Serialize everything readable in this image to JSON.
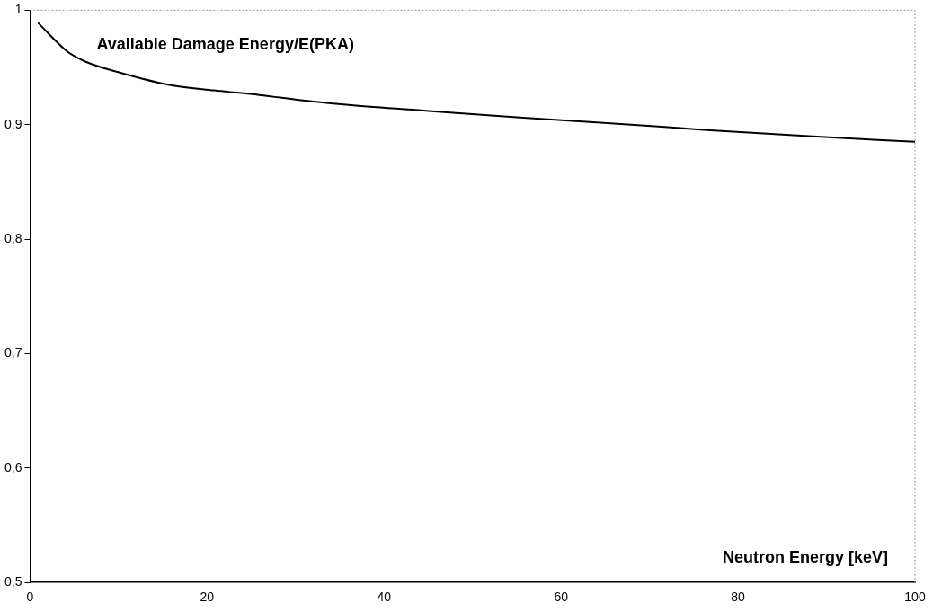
{
  "chart_data": {
    "type": "line",
    "xlabel": "Neutron Energy [keV]",
    "ylabel": "Available Damage Energy/E(PKA)",
    "x": [
      0.9,
      4.2,
      6.3,
      10.4,
      15.6,
      20.8,
      25.9,
      31.1,
      36.3,
      45,
      55.7,
      66,
      77.3,
      88,
      100
    ],
    "series": [
      {
        "color": "#000000",
        "values": [
          0.989,
          0.964,
          0.955,
          0.945,
          0.935,
          0.93,
          0.926,
          0.921,
          0.917,
          0.912,
          0.906,
          0.901,
          0.895,
          0.89,
          0.885
        ]
      }
    ],
    "xlim": [
      0,
      100
    ],
    "xticks": [
      0,
      20,
      40,
      60,
      80,
      100
    ],
    "ylim": [
      0.5,
      1
    ],
    "yticks": [
      {
        "value": 0.5,
        "label": "0,5"
      },
      {
        "value": 0.6,
        "label": "0,6"
      },
      {
        "value": 0.7,
        "label": "0,7"
      },
      {
        "value": 0.8,
        "label": "0,8"
      },
      {
        "value": 0.9,
        "label": "0,9"
      },
      1
    ],
    "grid": false,
    "legend": false,
    "marker": "none",
    "line_style": "solid"
  }
}
